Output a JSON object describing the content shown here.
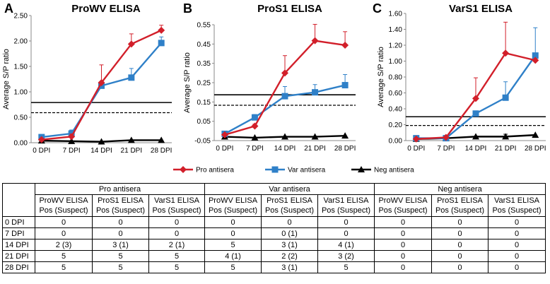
{
  "chart_data": [
    {
      "type": "line",
      "panel_label": "A",
      "title": "ProWV ELISA",
      "ylabel": "Average S/P ratio",
      "xlabel": "",
      "categories": [
        "0 DPI",
        "7 DPI",
        "14 DPI",
        "21 DPI",
        "28 DPI"
      ],
      "ylim": [
        0,
        2.5
      ],
      "yticks": [
        0.0,
        0.5,
        1.0,
        1.5,
        2.0,
        2.5
      ],
      "ytick_labels": [
        "0.00",
        "0.50",
        "1.00",
        "1.50",
        "2.00",
        "2.50"
      ],
      "series": [
        {
          "name": "Pro antisera",
          "color": "#d21f2a",
          "marker": "diamond",
          "values": [
            0.06,
            0.12,
            1.18,
            1.94,
            2.21
          ],
          "error": [
            0.0,
            0.05,
            0.35,
            0.2,
            0.1
          ]
        },
        {
          "name": "Var antisera",
          "color": "#2f80c8",
          "marker": "square",
          "values": [
            0.11,
            0.18,
            1.12,
            1.28,
            1.96
          ],
          "error": [
            0.05,
            0.07,
            0.07,
            0.18,
            0.12
          ]
        },
        {
          "name": "Neg antisera",
          "color": "#000000",
          "marker": "triangle",
          "values": [
            0.04,
            0.03,
            0.02,
            0.05,
            0.05
          ],
          "error": [
            0,
            0,
            0,
            0,
            0
          ]
        }
      ],
      "cutoff_solid": 0.79,
      "cutoff_dashed": 0.59
    },
    {
      "type": "line",
      "panel_label": "B",
      "title": "ProS1 ELISA",
      "ylabel": "Average S/P ratio",
      "xlabel": "",
      "categories": [
        "0 DPI",
        "7 DPI",
        "14 DPI",
        "21 DPI",
        "28 DPI"
      ],
      "ylim": [
        -0.05,
        0.55
      ],
      "yticks": [
        -0.05,
        0.05,
        0.15,
        0.25,
        0.35,
        0.45,
        0.55
      ],
      "ytick_labels": [
        "-0.05",
        "0.05",
        "0.15",
        "0.25",
        "0.35",
        "0.45",
        "0.55"
      ],
      "series": [
        {
          "name": "Pro antisera",
          "color": "#d21f2a",
          "marker": "diamond",
          "values": [
            -0.02,
            0.025,
            0.3,
            0.467,
            0.444
          ],
          "error": [
            0,
            0.01,
            0.09,
            0.085,
            0.07
          ]
        },
        {
          "name": "Var antisera",
          "color": "#2f80c8",
          "marker": "square",
          "values": [
            -0.015,
            0.07,
            0.18,
            0.2,
            0.237
          ],
          "error": [
            0.01,
            0.015,
            0.05,
            0.04,
            0.055
          ]
        },
        {
          "name": "Neg antisera",
          "color": "#000000",
          "marker": "triangle",
          "values": [
            -0.03,
            -0.035,
            -0.03,
            -0.03,
            -0.025
          ],
          "error": [
            0,
            0,
            0,
            0,
            0
          ]
        }
      ],
      "cutoff_solid": 0.187,
      "cutoff_dashed": 0.133
    },
    {
      "type": "line",
      "panel_label": "C",
      "title": "VarS1 ELISA",
      "ylabel": "Average S/P ratio",
      "xlabel": "",
      "categories": [
        "0 DPI",
        "7 DPI",
        "14 DPI",
        "21 DPI",
        "28 DPI"
      ],
      "ylim": [
        0,
        1.6
      ],
      "yticks": [
        0.0,
        0.2,
        0.4,
        0.6,
        0.8,
        1.0,
        1.2,
        1.4,
        1.6
      ],
      "ytick_labels": [
        "0.00",
        "0.20",
        "0.40",
        "0.60",
        "0.80",
        "1.00",
        "1.20",
        "1.40",
        "1.60"
      ],
      "series": [
        {
          "name": "Pro antisera",
          "color": "#d21f2a",
          "marker": "diamond",
          "values": [
            0.02,
            0.04,
            0.53,
            1.1,
            1.01
          ],
          "error": [
            0,
            0,
            0.26,
            0.39,
            0
          ]
        },
        {
          "name": "Var antisera",
          "color": "#2f80c8",
          "marker": "square",
          "values": [
            0.03,
            0.03,
            0.34,
            0.54,
            1.07
          ],
          "error": [
            0.01,
            0.01,
            0.01,
            0.2,
            0.35
          ]
        },
        {
          "name": "Neg antisera",
          "color": "#000000",
          "marker": "triangle",
          "values": [
            0.02,
            0.03,
            0.05,
            0.05,
            0.07
          ],
          "error": [
            0,
            0,
            0,
            0.03,
            0
          ]
        }
      ],
      "cutoff_solid": 0.3,
      "cutoff_dashed": 0.19
    }
  ],
  "legend": {
    "entries": [
      {
        "label": "Pro antisera",
        "color": "#d21f2a",
        "marker": "diamond"
      },
      {
        "label": "Var antisera",
        "color": "#2f80c8",
        "marker": "square"
      },
      {
        "label": "Neg antisera",
        "color": "#000000",
        "marker": "triangle"
      }
    ]
  },
  "table": {
    "groups": [
      "Pro antisera",
      "Var antisera",
      "Neg antisera"
    ],
    "subheaders": [
      {
        "line1": "ProWV ELISA",
        "line2": "Pos (Suspect)"
      },
      {
        "line1": "ProS1 ELISA",
        "line2": "Pos (Suspect)"
      },
      {
        "line1": "VarS1 ELISA",
        "line2": "Pos (Suspect)"
      },
      {
        "line1": "ProWV ELISA",
        "line2": "Pos (Suspect)"
      },
      {
        "line1": "ProS1 ELISA",
        "line2": "Pos (Suspect)"
      },
      {
        "line1": "VarS1 ELISA",
        "line2": "Pos (Suspect)"
      },
      {
        "line1": "ProWV ELISA",
        "line2": "Pos (Suspect)"
      },
      {
        "line1": "ProS1 ELISA",
        "line2": "Pos (Suspect)"
      },
      {
        "line1": "VarS1 ELISA",
        "line2": "Pos (Suspect)"
      }
    ],
    "rows": [
      {
        "label": "0 DPI",
        "cells": [
          "0",
          "0",
          "0",
          "0",
          "0",
          "0",
          "0",
          "0",
          "0"
        ]
      },
      {
        "label": "7 DPI",
        "cells": [
          "0",
          "0",
          "0",
          "0",
          "0 (1)",
          "0",
          "0",
          "0",
          "0"
        ]
      },
      {
        "label": "14 DPI",
        "cells": [
          "2 (3)",
          "3 (1)",
          "2 (1)",
          "5",
          "3 (1)",
          "4 (1)",
          "0",
          "0",
          "0"
        ]
      },
      {
        "label": "21 DPI",
        "cells": [
          "5",
          "5",
          "5",
          "4 (1)",
          "2 (2)",
          "3 (2)",
          "0",
          "0",
          "0"
        ]
      },
      {
        "label": "28 DPI",
        "cells": [
          "5",
          "5",
          "5",
          "5",
          "3 (1)",
          "5",
          "0",
          "0",
          "0"
        ]
      }
    ]
  }
}
